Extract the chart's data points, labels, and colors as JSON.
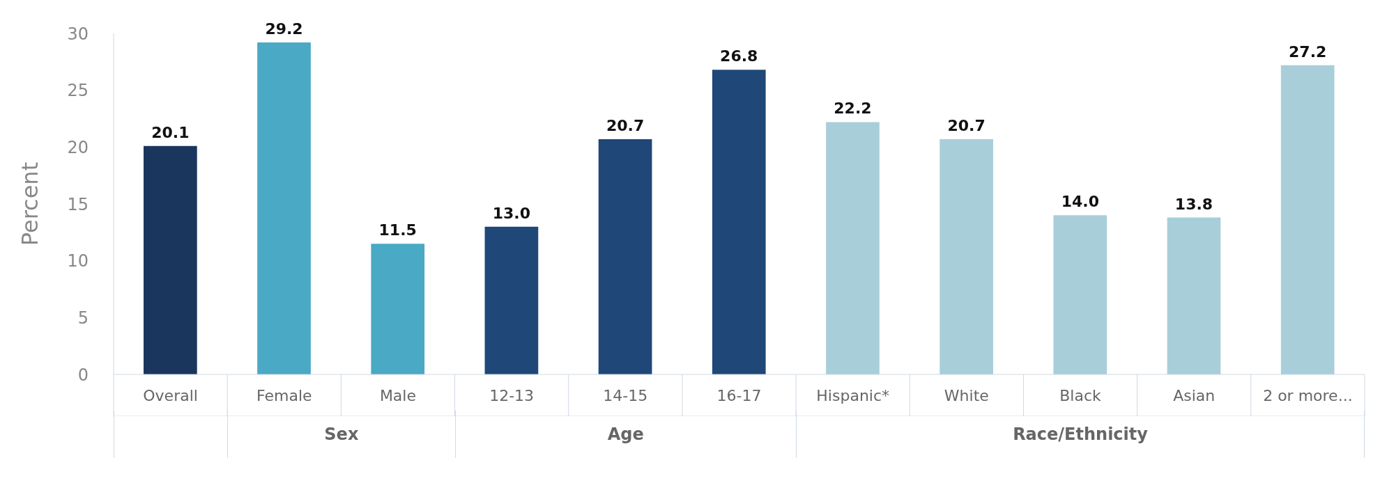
{
  "chart_data": {
    "type": "bar",
    "ylabel": "Percent",
    "categories": [
      "Overall",
      "Female",
      "Male",
      "12-13",
      "14-15",
      "16-17",
      "Hispanic*",
      "White",
      "Black",
      "Asian",
      "2 or more..."
    ],
    "values": [
      20.1,
      29.2,
      11.5,
      13.0,
      20.7,
      26.8,
      22.2,
      20.7,
      14.0,
      13.8,
      27.2
    ],
    "colors": [
      "#1b365d",
      "#4aa9c4",
      "#4aa9c4",
      "#1f4778",
      "#1f4778",
      "#1f4778",
      "#a8ceda",
      "#a8ceda",
      "#a8ceda",
      "#a8ceda",
      "#a8ceda"
    ],
    "value_labels": [
      "20.1",
      "29.2",
      "11.5",
      "13.0",
      "20.7",
      "26.8",
      "22.2",
      "20.7",
      "14.0",
      "13.8",
      "27.2"
    ],
    "annotations": [
      "Sex",
      "Age",
      "Race/Ethnicity"
    ],
    "ylim": [
      0,
      30
    ],
    "yticks": [
      0,
      5,
      10,
      15,
      20,
      25,
      30
    ]
  }
}
